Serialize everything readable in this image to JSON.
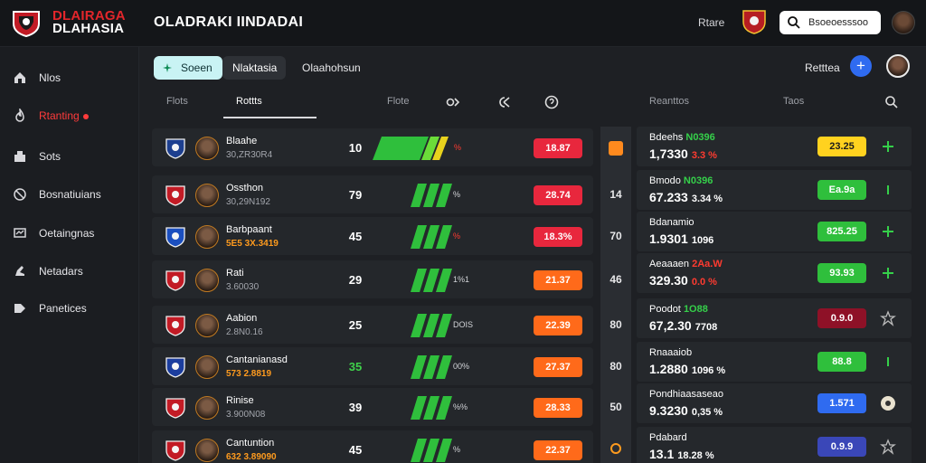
{
  "topbar": {
    "brand_line1": "DLAIRAGA",
    "brand_line2": "DLAHASIA",
    "title": "OLADRAKI IINDADAI",
    "link": "Rtare",
    "search_placeholder": "Bsoeoesssoo"
  },
  "sidebar": {
    "items": [
      {
        "label": "Nlos",
        "icon": "home-icon"
      },
      {
        "label": "Rtanting",
        "icon": "flame-icon",
        "active": true
      },
      {
        "label": "Sots",
        "icon": "stats-icon"
      },
      {
        "label": "Bosnatiuians",
        "icon": "target-icon"
      },
      {
        "label": "Oetaingnas",
        "icon": "monitor-icon"
      },
      {
        "label": "Netadars",
        "icon": "boot-icon"
      },
      {
        "label": "Panetices",
        "icon": "tag-icon"
      }
    ]
  },
  "main": {
    "pills": [
      "Soeen",
      "Nlaktasia",
      "Olaahohsun"
    ],
    "result_label": "Retttea",
    "subhead": {
      "col1": "Flots",
      "col2": "Rottts",
      "col3": "Flote",
      "right1": "Reanttos",
      "right2": "Taos"
    }
  },
  "colors": {
    "accent_red": "#e8273d",
    "accent_green": "#2fbf3c",
    "accent_orange": "#ff6a1a",
    "accent_blue": "#2f6bf0"
  },
  "rows": [
    {
      "name": "Blaahe",
      "meta": "30,ZR30R4",
      "meta_orange": false,
      "num": "10",
      "num_green": false,
      "bar_label": "%",
      "bar_label_red": true,
      "bar_level": 1.0,
      "chip": "18.87",
      "chip_color": "#e8273d",
      "rank": ""
    },
    {
      "name": "Ossthon",
      "meta": "30,29N192",
      "meta_orange": false,
      "num": "79",
      "num_green": false,
      "bar_label": "%",
      "bar_label_red": false,
      "bar_level": 0.55,
      "chip": "28.74",
      "chip_color": "#e8273d",
      "rank": "14"
    },
    {
      "name": "Barbpaant",
      "meta": "5E5  3X.3419",
      "meta_orange": true,
      "num": "45",
      "num_green": false,
      "bar_label": "%",
      "bar_label_red": true,
      "bar_level": 0.55,
      "chip": "18.3%",
      "chip_color": "#e8273d",
      "rank": "70"
    },
    {
      "name": "Rati",
      "meta": "3.60030",
      "meta_orange": false,
      "num": "29",
      "num_green": false,
      "bar_label": "1%1",
      "bar_label_red": false,
      "bar_level": 0.55,
      "chip": "21.37",
      "chip_color": "#ff6a1a",
      "rank": "46"
    },
    {
      "name": "Aabion",
      "meta": "2.8N0.16",
      "meta_orange": false,
      "num": "25",
      "num_green": false,
      "bar_label": "DOIS",
      "bar_label_red": false,
      "bar_level": 0.55,
      "chip": "22.39",
      "chip_color": "#ff6a1a",
      "rank": "80"
    },
    {
      "name": "Cantanianasd",
      "meta": "573  2.8819",
      "meta_orange": true,
      "num": "35",
      "num_green": true,
      "bar_label": "00%",
      "bar_label_red": false,
      "bar_level": 0.55,
      "chip": "27.37",
      "chip_color": "#ff6a1a",
      "rank": "80"
    },
    {
      "name": "Rinise",
      "meta": "3.900N08",
      "meta_orange": false,
      "num": "39",
      "num_green": false,
      "bar_label": "%%",
      "bar_label_red": false,
      "bar_level": 0.55,
      "chip": "28.33",
      "chip_color": "#ff6a1a",
      "rank": "50"
    },
    {
      "name": "Cantuntion",
      "meta": "632  3.89090",
      "meta_orange": true,
      "num": "45",
      "num_green": false,
      "bar_label": "%",
      "bar_label_red": false,
      "bar_level": 0.55,
      "chip": "22.37",
      "chip_color": "#ff6a1a",
      "rank": ""
    }
  ],
  "right_rows": [
    {
      "name": "Bdeehs",
      "accent": "N0396",
      "accent_color": "green",
      "value": "1,7330",
      "pct": "3.3 %",
      "pct_color": "#ff3b30",
      "chip": "23.25",
      "chip_color": "#ffd21f",
      "chip_text": "#1c1c1c",
      "icon": "plus-icon"
    },
    {
      "name": "Bmodo",
      "accent": "N0396",
      "accent_color": "green",
      "value": "67.233",
      "pct": "3.34 %",
      "pct_color": "#ffffff",
      "chip": "Ea.9a",
      "chip_color": "#2fbf3c",
      "chip_text": "#ffffff",
      "icon": "info-icon"
    },
    {
      "name": "Bdanamio",
      "accent": "",
      "accent_color": "",
      "value": "1.9301",
      "pct": "1096",
      "pct_color": "#ffffff",
      "chip": "825.25",
      "chip_color": "#2fbf3c",
      "chip_text": "#ffffff",
      "icon": "plus-icon"
    },
    {
      "name": "Aeaaaen",
      "accent": "2Aa.W",
      "accent_color": "red",
      "value": "329.30",
      "pct": "0.0 %",
      "pct_color": "#ff3b30",
      "chip": "93.93",
      "chip_color": "#2fbf3c",
      "chip_text": "#ffffff",
      "icon": "plus-icon"
    },
    {
      "name": "Poodot",
      "accent": "1O88",
      "accent_color": "green",
      "value": "67,2.30",
      "pct": "7708",
      "pct_color": "#ffffff",
      "chip": "0.9.0",
      "chip_color": "#8e1127",
      "chip_text": "#ffffff",
      "icon": "star-icon"
    },
    {
      "name": "Rnaaaiob",
      "accent": "",
      "accent_color": "",
      "value": "1.2880",
      "pct": "1096 %",
      "pct_color": "#ffffff",
      "chip": "88.8",
      "chip_color": "#2fbf3c",
      "chip_text": "#ffffff",
      "icon": "info-icon"
    },
    {
      "name": "Pondhiaasaseao",
      "accent": "",
      "accent_color": "",
      "value": "9.3230",
      "pct": "0,35 %",
      "pct_color": "#ffffff",
      "chip": "1.571",
      "chip_color": "#2f6bf0",
      "chip_text": "#ffffff",
      "icon": "ball-icon"
    },
    {
      "name": "Pdabard",
      "accent": "",
      "accent_color": "",
      "value": "13.1",
      "pct": "18.28 %",
      "pct_color": "#ffffff",
      "chip": "0.9.9",
      "chip_color": "#3a47b8",
      "chip_text": "#ffffff",
      "icon": "star-icon"
    }
  ]
}
